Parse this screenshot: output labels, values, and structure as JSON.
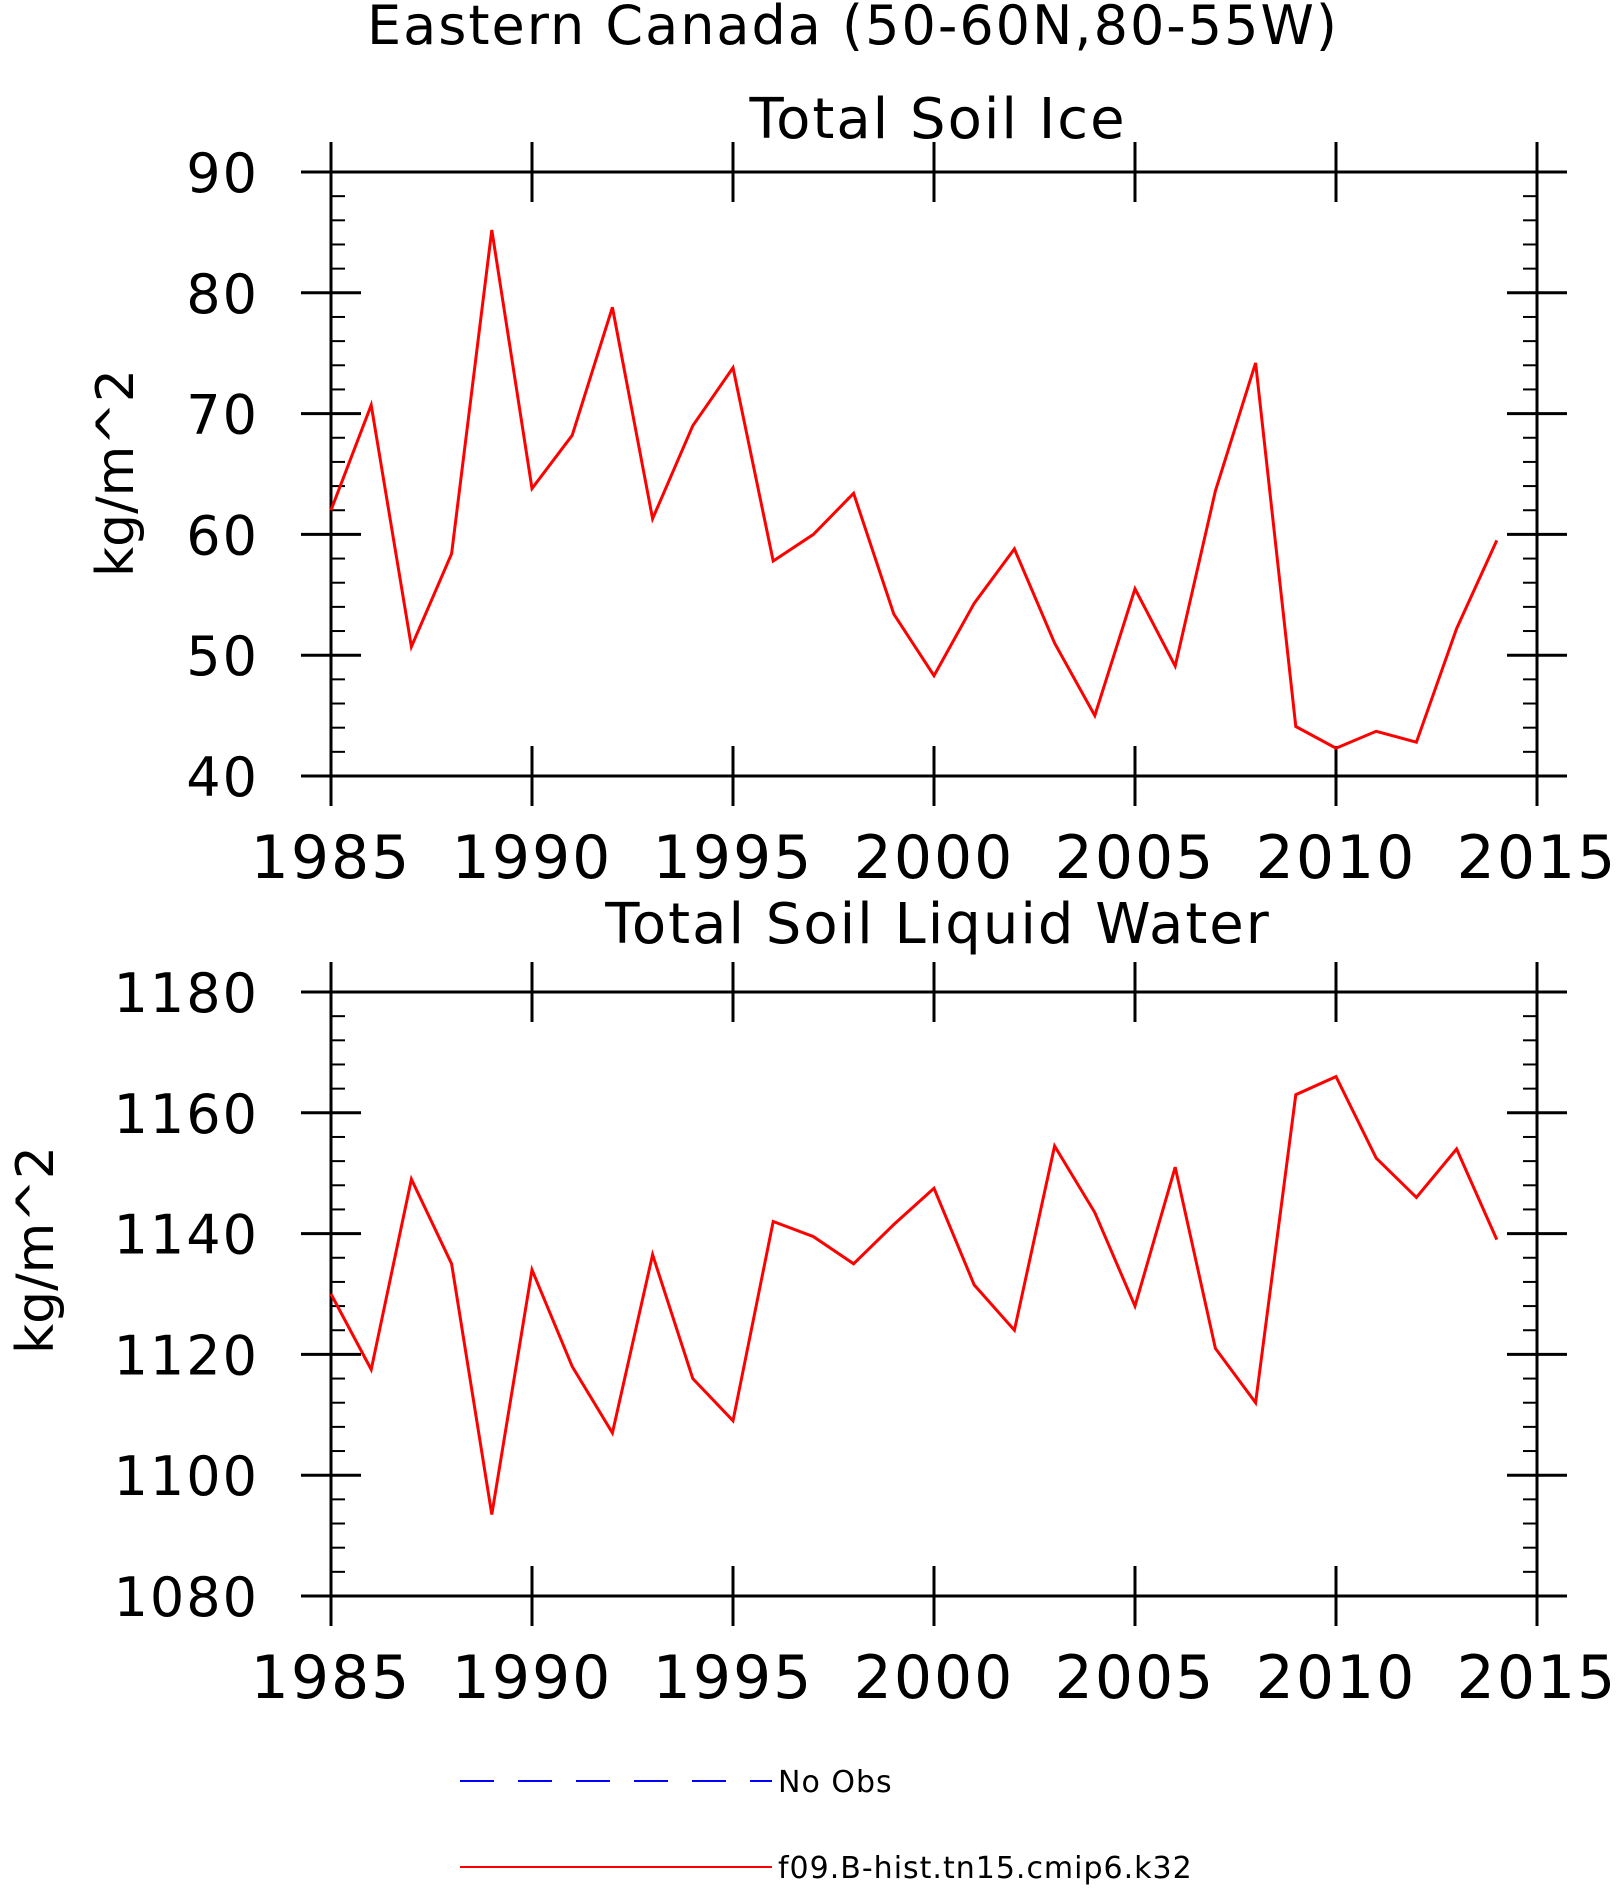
{
  "chart_data": [
    {
      "type": "line",
      "suptitle": "Eastern Canada (50-60N,80-55W)",
      "title": "Total Soil Ice",
      "ylabel": "kg/m^2",
      "xlabel": "",
      "xlim": [
        1985,
        2015
      ],
      "ylim": [
        40,
        90
      ],
      "xticks": [
        1985,
        1990,
        1995,
        2000,
        2005,
        2010,
        2015
      ],
      "yticks": [
        40,
        50,
        60,
        70,
        80,
        90
      ],
      "x": [
        1985,
        1986,
        1987,
        1988,
        1989,
        1990,
        1991,
        1992,
        1993,
        1994,
        1995,
        1996,
        1997,
        1998,
        1999,
        2000,
        2001,
        2002,
        2003,
        2004,
        2005,
        2006,
        2007,
        2008,
        2009,
        2010,
        2011,
        2012,
        2013,
        2014
      ],
      "series": [
        {
          "name": "f09.B-hist.tn15.cmip6.k32",
          "color": "#ff0000",
          "values": [
            62.0,
            70.7,
            50.7,
            58.4,
            85.2,
            63.8,
            68.2,
            78.8,
            61.3,
            69.0,
            73.8,
            57.8,
            60.0,
            63.4,
            53.4,
            48.3,
            54.3,
            58.8,
            51.0,
            45.0,
            55.5,
            49.1,
            63.6,
            74.2,
            44.1,
            42.3,
            43.7,
            42.8,
            52.2,
            59.5
          ]
        }
      ]
    },
    {
      "type": "line",
      "title": "Total Soil Liquid Water",
      "ylabel": "kg/m^2",
      "xlabel": "",
      "xlim": [
        1985,
        2015
      ],
      "ylim": [
        1080,
        1180
      ],
      "xticks": [
        1985,
        1990,
        1995,
        2000,
        2005,
        2010,
        2015
      ],
      "yticks": [
        1080,
        1100,
        1120,
        1140,
        1160,
        1180
      ],
      "x": [
        1985,
        1986,
        1987,
        1988,
        1989,
        1990,
        1991,
        1992,
        1993,
        1994,
        1995,
        1996,
        1997,
        1998,
        1999,
        2000,
        2001,
        2002,
        2003,
        2004,
        2005,
        2006,
        2007,
        2008,
        2009,
        2010,
        2011,
        2012,
        2013,
        2014
      ],
      "series": [
        {
          "name": "f09.B-hist.tn15.cmip6.k32",
          "color": "#ff0000",
          "values": [
            1130,
            1117.5,
            1149,
            1135,
            1093.5,
            1134,
            1118,
            1107,
            1136.5,
            1116,
            1109,
            1142,
            1139.5,
            1135,
            1141.5,
            1147.5,
            1131.5,
            1124,
            1154.5,
            1143.5,
            1128,
            1151,
            1121,
            1112,
            1163,
            1166,
            1152.5,
            1146,
            1154,
            1139
          ]
        }
      ]
    }
  ],
  "legend": {
    "items": [
      {
        "label": "No Obs",
        "color": "#0000ff",
        "style": "dashed"
      },
      {
        "label": "f09.B-hist.tn15.cmip6.k32",
        "color": "#ff0000",
        "style": "solid"
      }
    ]
  }
}
